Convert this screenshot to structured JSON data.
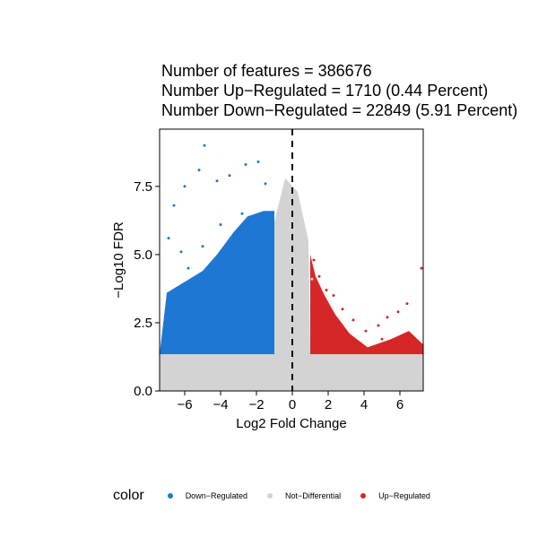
{
  "chart_data": {
    "type": "scatter",
    "title_lines": [
      "Number of features = 386676",
      "Number Up−Regulated = 1710 (0.44 Percent)",
      "Number Down−Regulated = 22849 (5.91 Percent)"
    ],
    "xlabel": "Log2 Fold Change",
    "ylabel": "−Log10 FDR",
    "xlim": [
      -7.4,
      7.3
    ],
    "ylim": [
      0,
      9.6
    ],
    "x_ticks": [
      -6,
      -4,
      -2,
      0,
      2,
      4,
      6
    ],
    "x_tick_labels": [
      "−6",
      "−4",
      "−2",
      "0",
      "2",
      "4",
      "6"
    ],
    "y_ticks": [
      0,
      2.5,
      5,
      7.5
    ],
    "y_tick_labels": [
      "0.0",
      "2.5",
      "5.0",
      "7.5"
    ],
    "vline_x": 0,
    "grid": false,
    "legend_placement": "bottom",
    "legend": {
      "title": "color",
      "entries": [
        {
          "label": "Down−Regulated",
          "color": "#1f77d4"
        },
        {
          "label": "Not−Differential",
          "color": "#d3d3d3"
        },
        {
          "label": "Up−Regulated",
          "color": "#d62728"
        }
      ]
    },
    "series": [
      {
        "name": "Down−Regulated",
        "color": "#1f77d4",
        "points": [
          [
            -6.6,
            6.8
          ],
          [
            -6.0,
            7.5
          ],
          [
            -5.2,
            8.1
          ],
          [
            -4.9,
            9.0
          ],
          [
            -4.2,
            7.7
          ],
          [
            -3.5,
            7.9
          ],
          [
            -2.6,
            8.3
          ],
          [
            -1.9,
            8.4
          ],
          [
            -1.5,
            7.6
          ],
          [
            -6.9,
            5.6
          ],
          [
            -6.2,
            5.1
          ],
          [
            -5.8,
            4.5
          ],
          [
            -5.0,
            5.3
          ],
          [
            -4.5,
            4.2
          ],
          [
            -4.0,
            6.1
          ],
          [
            -3.2,
            5.8
          ],
          [
            -2.8,
            6.5
          ],
          [
            -2.2,
            6.3
          ],
          [
            -1.8,
            5.0
          ],
          [
            -1.3,
            4.2
          ],
          [
            -1.2,
            2.8
          ],
          [
            -1.6,
            3.5
          ],
          [
            -2.5,
            3.0
          ],
          [
            -3.6,
            2.2
          ],
          [
            -4.8,
            1.9
          ],
          [
            -5.9,
            1.6
          ],
          [
            -6.8,
            1.8
          ],
          [
            -7.0,
            2.4
          ],
          [
            -6.4,
            3.2
          ],
          [
            -5.5,
            3.7
          ],
          [
            -4.3,
            3.4
          ],
          [
            -3.3,
            4.1
          ],
          [
            -2.1,
            2.0
          ],
          [
            -1.4,
            1.6
          ],
          [
            -1.1,
            1.5
          ],
          [
            -2.9,
            1.7
          ]
        ]
      },
      {
        "name": "Not−Differential",
        "color": "#d3d3d3",
        "points": [
          [
            -0.3,
            7.5
          ],
          [
            0.2,
            6.8
          ],
          [
            -0.5,
            6.2
          ],
          [
            0.6,
            5.5
          ],
          [
            -0.8,
            5.0
          ],
          [
            0.4,
            4.6
          ],
          [
            1.1,
            4.1
          ],
          [
            -0.2,
            3.8
          ],
          [
            0.9,
            3.1
          ],
          [
            1.6,
            1.2
          ],
          [
            2.5,
            0.9
          ],
          [
            3.5,
            0.7
          ],
          [
            4.6,
            0.6
          ],
          [
            5.8,
            0.5
          ],
          [
            6.9,
            0.8
          ],
          [
            -6.8,
            1.2
          ],
          [
            -5.5,
            1.0
          ],
          [
            -4.0,
            0.9
          ],
          [
            -2.5,
            1.1
          ],
          [
            -1.0,
            0.6
          ],
          [
            0.0,
            0.3
          ],
          [
            3.0,
            0.3
          ],
          [
            5.0,
            0.2
          ],
          [
            -3.5,
            0.4
          ],
          [
            -6.0,
            0.2
          ],
          [
            7.2,
            0.3
          ]
        ]
      },
      {
        "name": "Up−Regulated",
        "color": "#d62728",
        "points": [
          [
            1.2,
            4.8
          ],
          [
            1.5,
            4.2
          ],
          [
            1.9,
            3.7
          ],
          [
            2.3,
            3.5
          ],
          [
            2.8,
            3.0
          ],
          [
            3.4,
            2.6
          ],
          [
            4.1,
            2.2
          ],
          [
            4.8,
            2.4
          ],
          [
            5.3,
            2.7
          ],
          [
            5.9,
            2.9
          ],
          [
            6.4,
            3.2
          ],
          [
            7.2,
            4.5
          ],
          [
            1.1,
            2.2
          ],
          [
            1.4,
            1.6
          ],
          [
            2.0,
            1.9
          ],
          [
            2.6,
            1.5
          ],
          [
            3.1,
            1.7
          ],
          [
            3.8,
            1.5
          ],
          [
            4.4,
            1.6
          ],
          [
            5.0,
            1.9
          ],
          [
            5.6,
            1.6
          ],
          [
            6.1,
            1.8
          ],
          [
            6.7,
            1.6
          ],
          [
            1.8,
            2.9
          ]
        ]
      }
    ]
  }
}
